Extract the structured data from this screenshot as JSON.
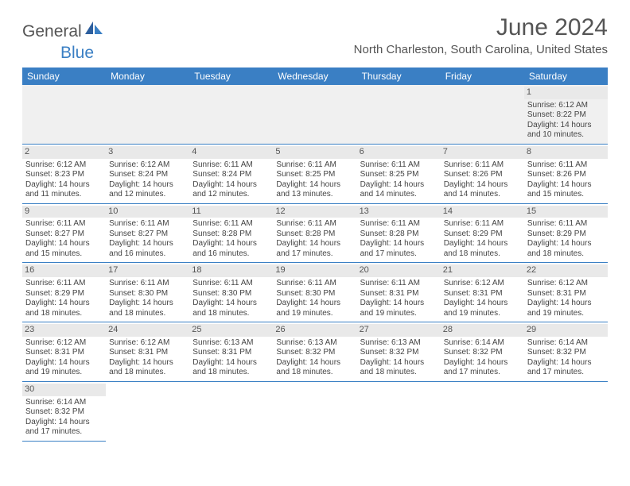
{
  "logo": {
    "part1": "General",
    "part2": "Blue"
  },
  "title": "June 2024",
  "location": "North Charleston, South Carolina, United States",
  "colors": {
    "accent": "#3a7fc4",
    "header_text": "#ffffff",
    "day_header_bg": "#e9e9e9",
    "empty_bg": "#f0f0f0",
    "text": "#444444",
    "border": "#3a7fc4"
  },
  "weekdays": [
    "Sunday",
    "Monday",
    "Tuesday",
    "Wednesday",
    "Thursday",
    "Friday",
    "Saturday"
  ],
  "weeks": [
    [
      null,
      null,
      null,
      null,
      null,
      null,
      {
        "d": "1",
        "sr": "6:12 AM",
        "ss": "8:22 PM",
        "dl": "14 hours and 10 minutes."
      }
    ],
    [
      {
        "d": "2",
        "sr": "6:12 AM",
        "ss": "8:23 PM",
        "dl": "14 hours and 11 minutes."
      },
      {
        "d": "3",
        "sr": "6:12 AM",
        "ss": "8:24 PM",
        "dl": "14 hours and 12 minutes."
      },
      {
        "d": "4",
        "sr": "6:11 AM",
        "ss": "8:24 PM",
        "dl": "14 hours and 12 minutes."
      },
      {
        "d": "5",
        "sr": "6:11 AM",
        "ss": "8:25 PM",
        "dl": "14 hours and 13 minutes."
      },
      {
        "d": "6",
        "sr": "6:11 AM",
        "ss": "8:25 PM",
        "dl": "14 hours and 14 minutes."
      },
      {
        "d": "7",
        "sr": "6:11 AM",
        "ss": "8:26 PM",
        "dl": "14 hours and 14 minutes."
      },
      {
        "d": "8",
        "sr": "6:11 AM",
        "ss": "8:26 PM",
        "dl": "14 hours and 15 minutes."
      }
    ],
    [
      {
        "d": "9",
        "sr": "6:11 AM",
        "ss": "8:27 PM",
        "dl": "14 hours and 15 minutes."
      },
      {
        "d": "10",
        "sr": "6:11 AM",
        "ss": "8:27 PM",
        "dl": "14 hours and 16 minutes."
      },
      {
        "d": "11",
        "sr": "6:11 AM",
        "ss": "8:28 PM",
        "dl": "14 hours and 16 minutes."
      },
      {
        "d": "12",
        "sr": "6:11 AM",
        "ss": "8:28 PM",
        "dl": "14 hours and 17 minutes."
      },
      {
        "d": "13",
        "sr": "6:11 AM",
        "ss": "8:28 PM",
        "dl": "14 hours and 17 minutes."
      },
      {
        "d": "14",
        "sr": "6:11 AM",
        "ss": "8:29 PM",
        "dl": "14 hours and 18 minutes."
      },
      {
        "d": "15",
        "sr": "6:11 AM",
        "ss": "8:29 PM",
        "dl": "14 hours and 18 minutes."
      }
    ],
    [
      {
        "d": "16",
        "sr": "6:11 AM",
        "ss": "8:29 PM",
        "dl": "14 hours and 18 minutes."
      },
      {
        "d": "17",
        "sr": "6:11 AM",
        "ss": "8:30 PM",
        "dl": "14 hours and 18 minutes."
      },
      {
        "d": "18",
        "sr": "6:11 AM",
        "ss": "8:30 PM",
        "dl": "14 hours and 18 minutes."
      },
      {
        "d": "19",
        "sr": "6:11 AM",
        "ss": "8:30 PM",
        "dl": "14 hours and 19 minutes."
      },
      {
        "d": "20",
        "sr": "6:11 AM",
        "ss": "8:31 PM",
        "dl": "14 hours and 19 minutes."
      },
      {
        "d": "21",
        "sr": "6:12 AM",
        "ss": "8:31 PM",
        "dl": "14 hours and 19 minutes."
      },
      {
        "d": "22",
        "sr": "6:12 AM",
        "ss": "8:31 PM",
        "dl": "14 hours and 19 minutes."
      }
    ],
    [
      {
        "d": "23",
        "sr": "6:12 AM",
        "ss": "8:31 PM",
        "dl": "14 hours and 19 minutes."
      },
      {
        "d": "24",
        "sr": "6:12 AM",
        "ss": "8:31 PM",
        "dl": "14 hours and 18 minutes."
      },
      {
        "d": "25",
        "sr": "6:13 AM",
        "ss": "8:31 PM",
        "dl": "14 hours and 18 minutes."
      },
      {
        "d": "26",
        "sr": "6:13 AM",
        "ss": "8:32 PM",
        "dl": "14 hours and 18 minutes."
      },
      {
        "d": "27",
        "sr": "6:13 AM",
        "ss": "8:32 PM",
        "dl": "14 hours and 18 minutes."
      },
      {
        "d": "28",
        "sr": "6:14 AM",
        "ss": "8:32 PM",
        "dl": "14 hours and 17 minutes."
      },
      {
        "d": "29",
        "sr": "6:14 AM",
        "ss": "8:32 PM",
        "dl": "14 hours and 17 minutes."
      }
    ],
    [
      {
        "d": "30",
        "sr": "6:14 AM",
        "ss": "8:32 PM",
        "dl": "14 hours and 17 minutes."
      },
      null,
      null,
      null,
      null,
      null,
      null
    ]
  ],
  "labels": {
    "sunrise": "Sunrise:",
    "sunset": "Sunset:",
    "daylight": "Daylight:"
  }
}
